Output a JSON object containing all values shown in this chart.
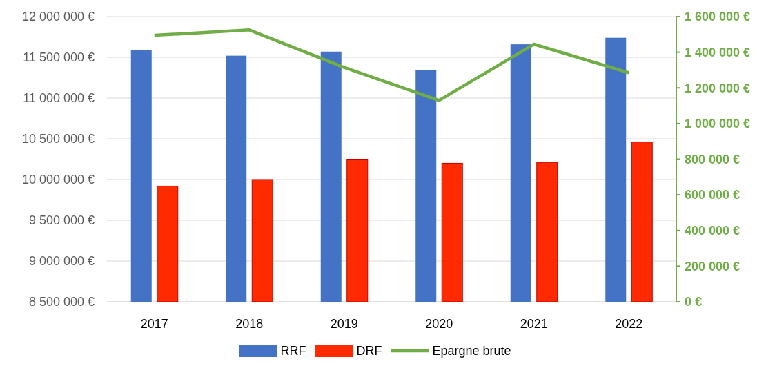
{
  "chart_data": {
    "type": "bar",
    "categories": [
      "2017",
      "2018",
      "2019",
      "2020",
      "2021",
      "2022"
    ],
    "series": [
      {
        "name": "RRF",
        "color": "#4472c4",
        "values": [
          11590000,
          11520000,
          11570000,
          11340000,
          11660000,
          11740000
        ]
      },
      {
        "name": "DRF",
        "color": "#ff2a00",
        "values": [
          9920000,
          10000000,
          10250000,
          10200000,
          10210000,
          10460000
        ]
      },
      {
        "name": "Epargne brute",
        "type": "line",
        "axis": "y2",
        "color": "#70ad47",
        "values": [
          1495000,
          1525000,
          1315000,
          1130000,
          1445000,
          1285000
        ]
      }
    ],
    "ylim": [
      8500000,
      12000000
    ],
    "yticks": [
      {
        "value": 8500000,
        "label": "8 500 000 €"
      },
      {
        "value": 9000000,
        "label": "9 000 000 €"
      },
      {
        "value": 9500000,
        "label": "9 500 000 €"
      },
      {
        "value": 10000000,
        "label": "10 000 000 €"
      },
      {
        "value": 10500000,
        "label": "10 500 000 €"
      },
      {
        "value": 11000000,
        "label": "11 000 000 €"
      },
      {
        "value": 11500000,
        "label": "11 500 000 €"
      },
      {
        "value": 12000000,
        "label": "12 000 000 €"
      }
    ],
    "y2lim": [
      0,
      1600000
    ],
    "y2ticks": [
      {
        "value": 0,
        "label": "0 €"
      },
      {
        "value": 200000,
        "label": "200 000 €"
      },
      {
        "value": 400000,
        "label": "400 000 €"
      },
      {
        "value": 600000,
        "label": "600 000 €"
      },
      {
        "value": 800000,
        "label": "800 000 €"
      },
      {
        "value": 1000000,
        "label": "1 000 000 €"
      },
      {
        "value": 1200000,
        "label": "1 200 000 €"
      },
      {
        "value": 1400000,
        "label": "1 400 000 €"
      },
      {
        "value": 1600000,
        "label": "1 600 000 €"
      }
    ],
    "grid": "y",
    "legend": "bottom",
    "marker": "none",
    "line_style": "solid"
  }
}
